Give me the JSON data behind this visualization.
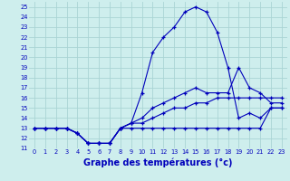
{
  "title": "Graphe des températures (°c)",
  "background_color": "#ceeeed",
  "grid_color": "#aad4d4",
  "line_color": "#0000bb",
  "xlim": [
    -0.5,
    23.5
  ],
  "ylim": [
    11,
    25.5
  ],
  "xticks": [
    0,
    1,
    2,
    3,
    4,
    5,
    6,
    7,
    8,
    9,
    10,
    11,
    12,
    13,
    14,
    15,
    16,
    17,
    18,
    19,
    20,
    21,
    22,
    23
  ],
  "yticks": [
    11,
    12,
    13,
    14,
    15,
    16,
    17,
    18,
    19,
    20,
    21,
    22,
    23,
    24,
    25
  ],
  "hours": [
    0,
    1,
    2,
    3,
    4,
    5,
    6,
    7,
    8,
    9,
    10,
    11,
    12,
    13,
    14,
    15,
    16,
    17,
    18,
    19,
    20,
    21,
    22,
    23
  ],
  "curve_peak": [
    13,
    13,
    13,
    13,
    12.5,
    11.5,
    11.5,
    11.5,
    13,
    13.5,
    16.5,
    20.5,
    22,
    23,
    24.5,
    25,
    24.5,
    22.5,
    19,
    14,
    14.5,
    14,
    15,
    15
  ],
  "curve_mid1": [
    13,
    13,
    13,
    13,
    12.5,
    11.5,
    11.5,
    11.5,
    13,
    13.5,
    14,
    15,
    15.5,
    16,
    16.5,
    17,
    16.5,
    16.5,
    16.5,
    19,
    17,
    16.5,
    15.5,
    15.5
  ],
  "curve_mid2": [
    13,
    13,
    13,
    13,
    12.5,
    11.5,
    11.5,
    11.5,
    13,
    13.5,
    13.5,
    14,
    14.5,
    15,
    15,
    15.5,
    15.5,
    16,
    16,
    16,
    16,
    16,
    16,
    16
  ],
  "curve_base": [
    13,
    13,
    13,
    13,
    12.5,
    11.5,
    11.5,
    11.5,
    13,
    13,
    13,
    13,
    13,
    13,
    13,
    13,
    13,
    13,
    13,
    13,
    13,
    13,
    15,
    15
  ]
}
